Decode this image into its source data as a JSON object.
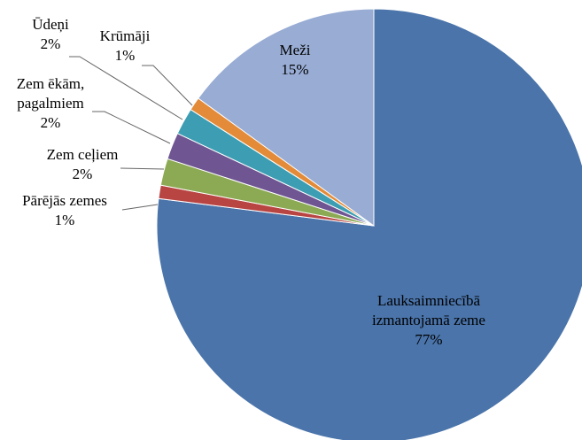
{
  "chart_data": {
    "type": "pie",
    "categories": [
      "Lauksaimniecībā\nizmantojamā zeme",
      "Pārējās zemes",
      "Zem ceļiem",
      "Zem ēkām,\npagalmiem",
      "Ūdeņi",
      "Krūmāji",
      "Meži"
    ],
    "values": [
      77,
      1,
      2,
      2,
      2,
      1,
      15
    ],
    "value_labels": [
      "77%",
      "1%",
      "2%",
      "2%",
      "2%",
      "1%",
      "15%"
    ],
    "colors": [
      "#4a74aa",
      "#b94543",
      "#8caa54",
      "#6f5592",
      "#3d9db2",
      "#e38b38",
      "#98acd4"
    ]
  }
}
